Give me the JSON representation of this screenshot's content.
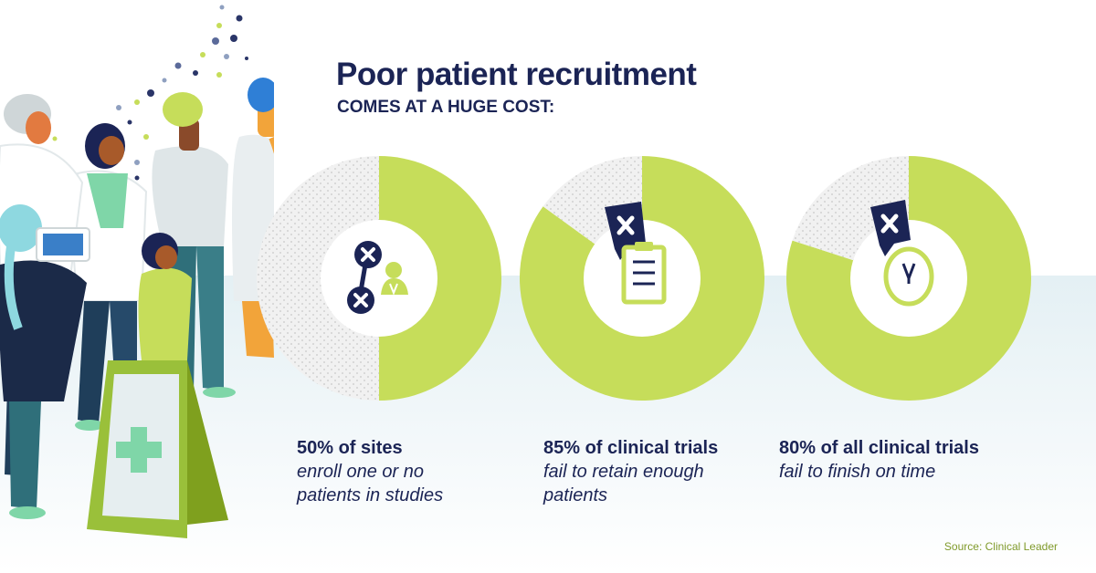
{
  "header": {
    "title": "Poor patient recruitment",
    "subtitle": "COMES AT A HUGE COST:"
  },
  "chart_data": [
    {
      "type": "pie",
      "title": "",
      "slices": [
        {
          "label": "enroll one or no patients in studies",
          "value": 50,
          "color": "#c6dd5a"
        },
        {
          "label": "",
          "value": 50,
          "color": "#f1f1f1"
        }
      ],
      "icon": "no-patients-icon",
      "stat_headline": "50% of sites",
      "stat_desc": "enroll one or no\npatients in studies"
    },
    {
      "type": "pie",
      "title": "",
      "slices": [
        {
          "label": "fail to retain enough patients",
          "value": 85,
          "color": "#c6dd5a"
        },
        {
          "label": "",
          "value": 15,
          "color": "#f1f1f1"
        }
      ],
      "icon": "clipboard-icon",
      "stat_headline": "85% of clinical trials",
      "stat_desc": "fail to retain enough\npatients"
    },
    {
      "type": "pie",
      "title": "",
      "slices": [
        {
          "label": "fail to finish on time",
          "value": 80,
          "color": "#c6dd5a"
        },
        {
          "label": "",
          "value": 20,
          "color": "#f1f1f1"
        }
      ],
      "icon": "clock-icon",
      "stat_headline": "80% of all clinical trials",
      "stat_desc": "fail to finish on time"
    }
  ],
  "source": "Source: Clinical Leader",
  "colors": {
    "navy": "#1b2455",
    "lime": "#c6dd5a",
    "lime_dark": "#93b52a",
    "dotted_bg": "#f1f1f1",
    "dots": "#d2d2d2"
  },
  "illustration": {
    "name": "group-of-patients-illustration",
    "sign_icon": "medical-cross-icon"
  }
}
